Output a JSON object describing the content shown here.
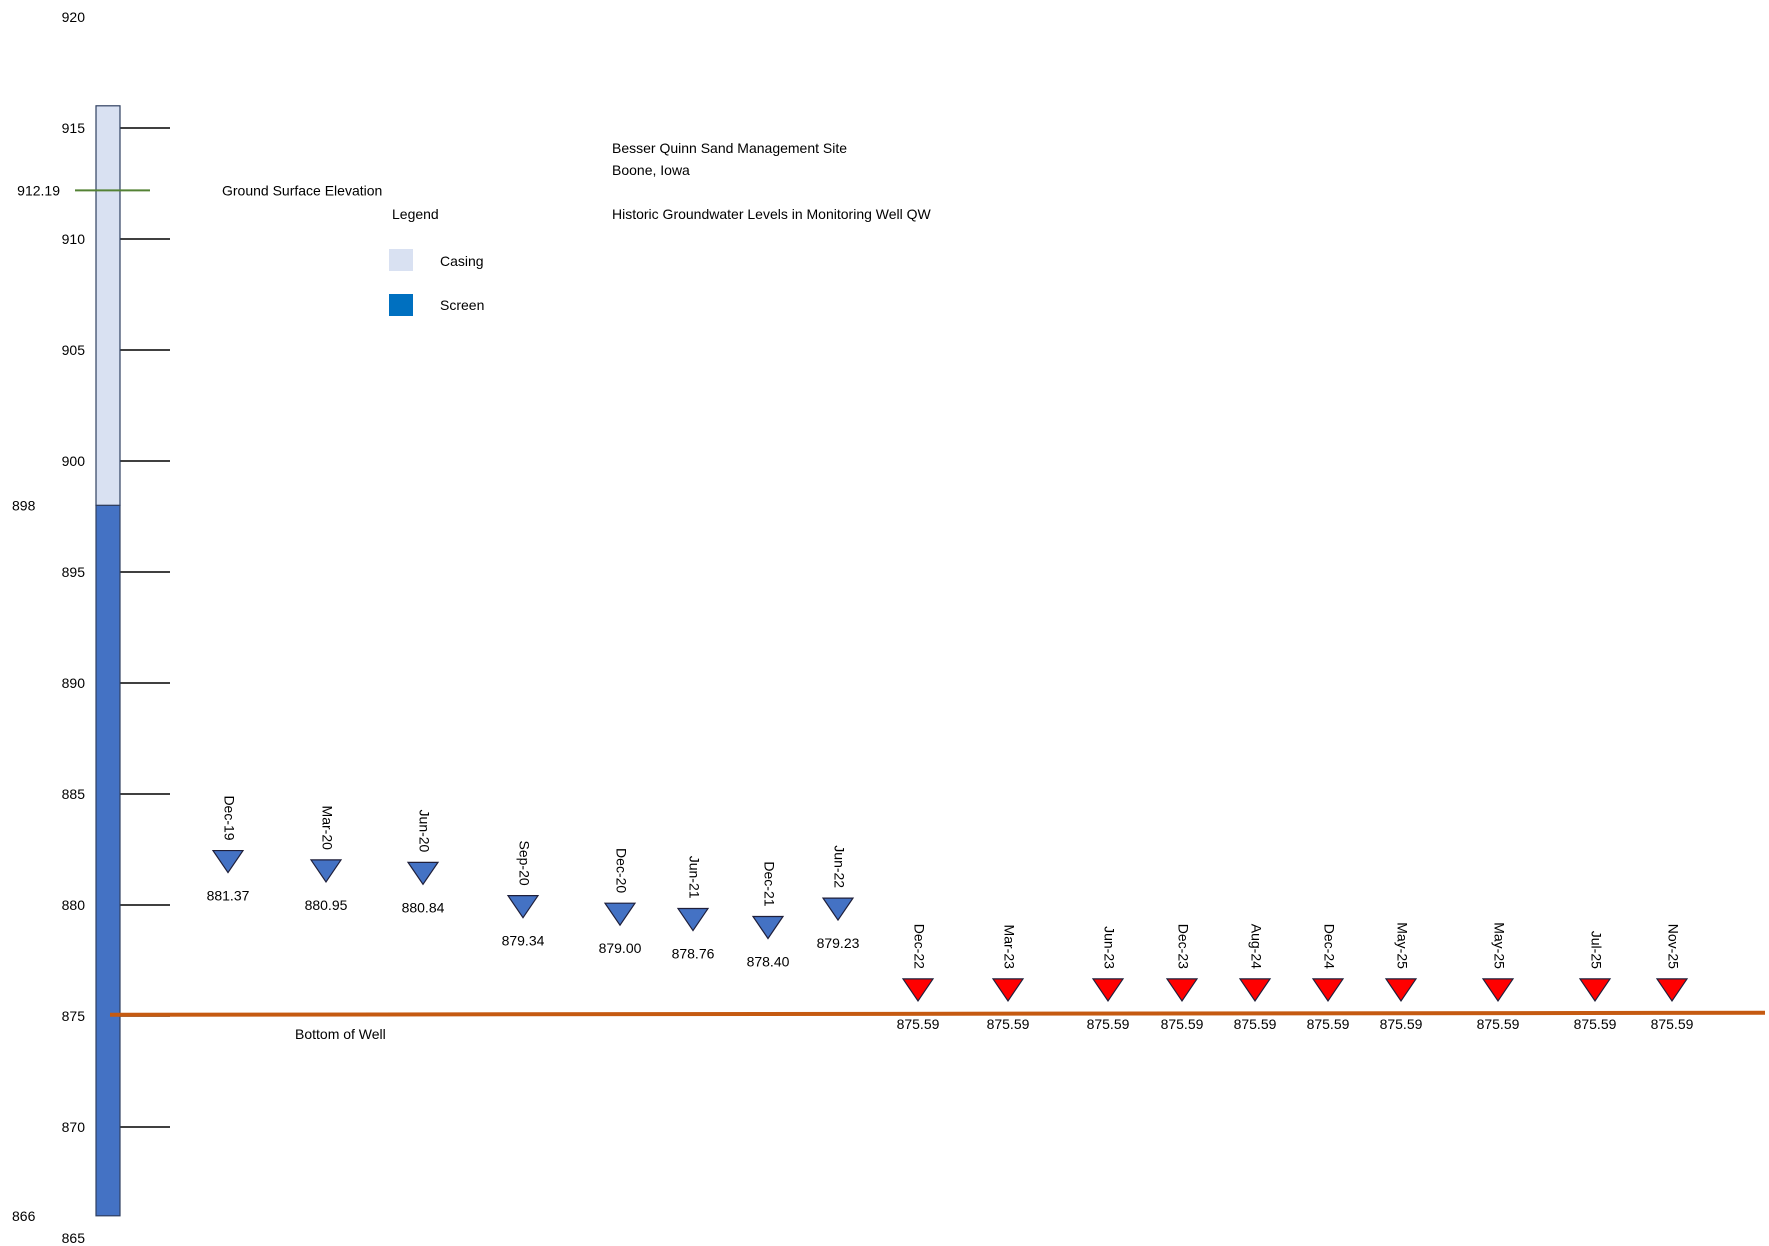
{
  "title": {
    "site": "Besser Quinn Sand Management Site",
    "location": "Boone, Iowa",
    "subtitle": "Historic Groundwater Levels in Monitoring Well QW"
  },
  "legend": {
    "title": "Legend",
    "items": [
      {
        "label": "Casing",
        "color": "#d9e1f2"
      },
      {
        "label": "Screen",
        "color": "#0070c0"
      }
    ]
  },
  "well": {
    "casing_top": 916,
    "screen_top": 898,
    "bottom": 866,
    "casing_color": "#d9e1f2",
    "screen_color": "#4472c4",
    "ground_surface": {
      "value": "912.19",
      "label": "Ground Surface Elevation",
      "color": "#548235"
    },
    "screen_top_label": "898",
    "bottom_label": "866",
    "bottom_of_well": {
      "value": 875.1,
      "label": "Bottom of Well",
      "color": "#c55a11"
    }
  },
  "axis": {
    "min": 865,
    "max": 920,
    "ticks": [
      920,
      915,
      910,
      905,
      900,
      895,
      890,
      885,
      880,
      875,
      870,
      865
    ],
    "tick_marks": [
      915,
      910,
      905,
      900,
      895,
      890,
      885,
      880,
      875,
      870
    ]
  },
  "chart_data": {
    "type": "scatter",
    "title": "Historic Groundwater Levels in Monitoring Well QW",
    "ylim": [
      865,
      920
    ],
    "series": [
      {
        "marker": "inverted-triangle",
        "color": "#4472c4",
        "points": [
          {
            "date": "Dec-19",
            "level": 881.37,
            "label": "881.37"
          },
          {
            "date": "Mar-20",
            "level": 880.95,
            "label": "880.95"
          },
          {
            "date": "Jun-20",
            "level": 880.84,
            "label": "880.84"
          },
          {
            "date": "Sep-20",
            "level": 879.34,
            "label": "879.34"
          },
          {
            "date": "Dec-20",
            "level": 879.0,
            "label": "879.00"
          },
          {
            "date": "Jun-21",
            "level": 878.76,
            "label": "878.76"
          },
          {
            "date": "Dec-21",
            "level": 878.4,
            "label": "878.40"
          },
          {
            "date": "Jun-22",
            "level": 879.23,
            "label": "879.23"
          }
        ]
      },
      {
        "marker": "inverted-triangle",
        "color": "#ff0000",
        "points": [
          {
            "date": "Dec-22",
            "level": 875.59,
            "label": "875.59"
          },
          {
            "date": "Mar-23",
            "level": 875.59,
            "label": "875.59"
          },
          {
            "date": "Jun-23",
            "level": 875.59,
            "label": "875.59"
          },
          {
            "date": "Dec-23",
            "level": 875.59,
            "label": "875.59"
          },
          {
            "date": "Aug-24",
            "level": 875.59,
            "label": "875.59"
          },
          {
            "date": "Dec-24",
            "level": 875.59,
            "label": "875.59"
          },
          {
            "date": "May-25",
            "level": 875.59,
            "label": "875.59"
          },
          {
            "date": "May-25",
            "level": 875.59,
            "label": "875.59"
          },
          {
            "date": "Jul-25",
            "level": 875.59,
            "label": "875.59"
          },
          {
            "date": "Nov-25",
            "level": 875.59,
            "label": "875.59"
          }
        ]
      }
    ]
  }
}
